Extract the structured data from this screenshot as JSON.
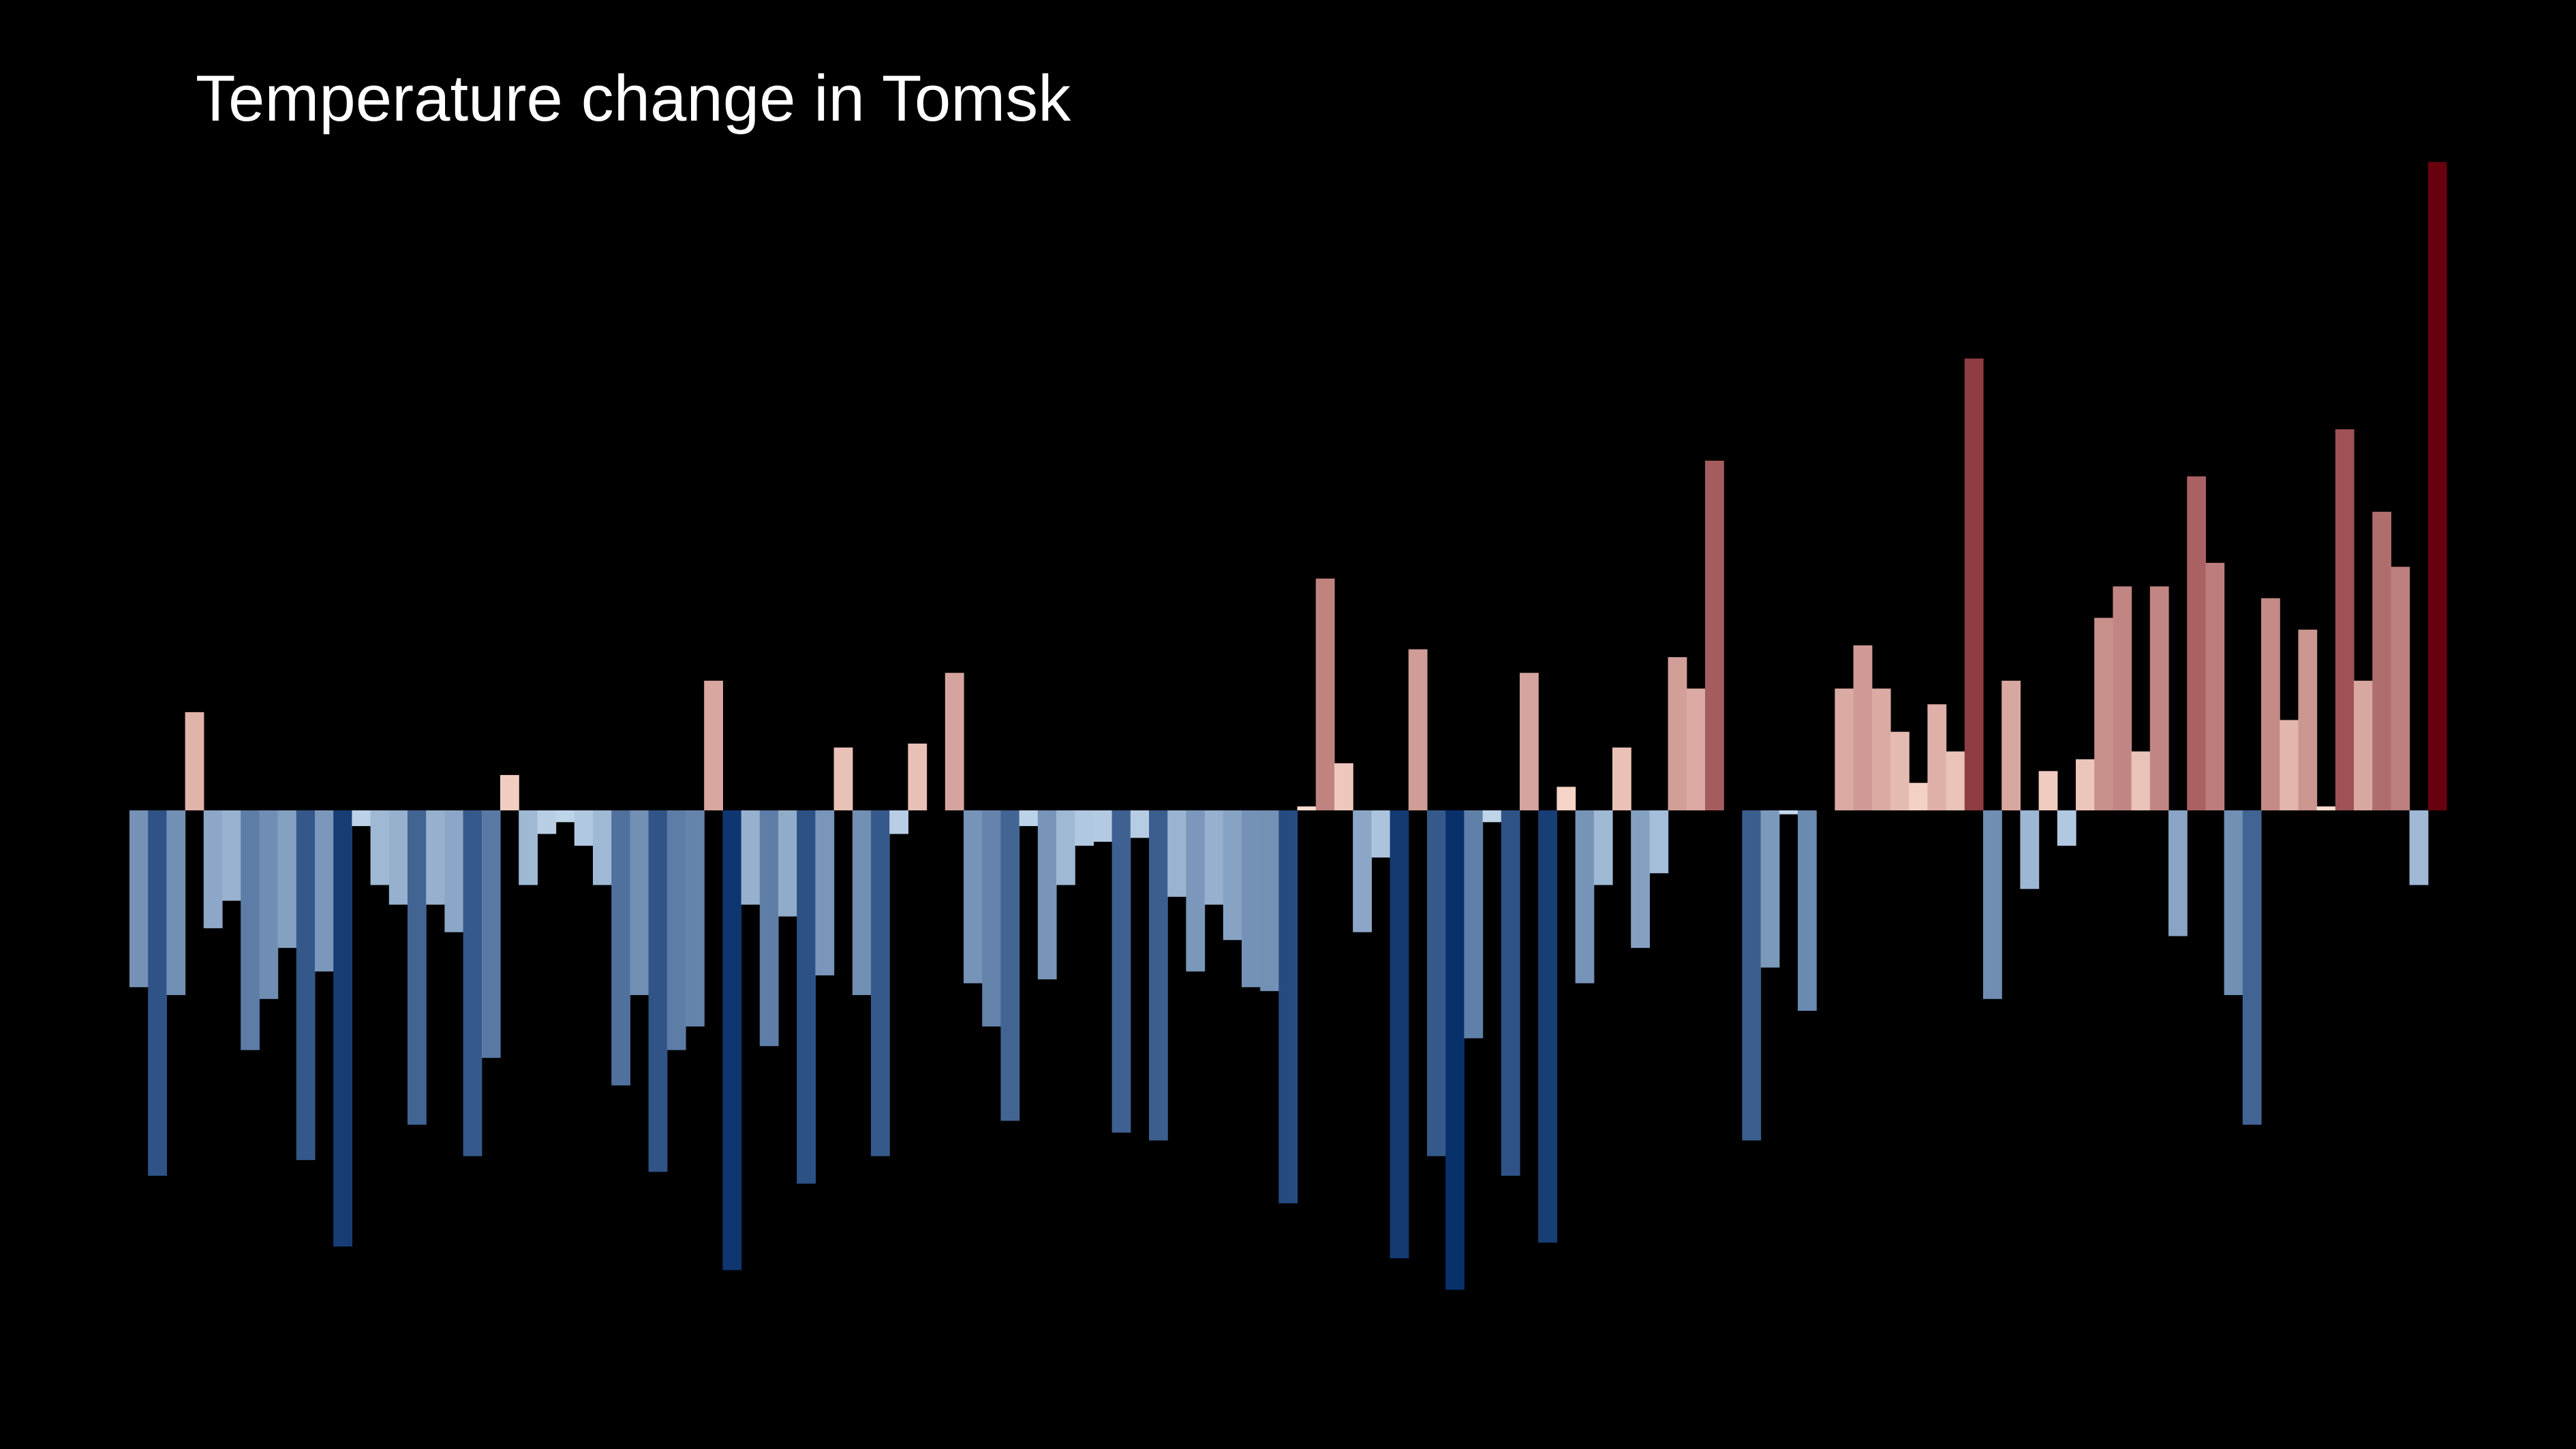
{
  "chart_data": {
    "type": "bar",
    "title": "Temperature change in Tomsk",
    "xlabel": "",
    "ylabel": "",
    "axes_visible": false,
    "grid": false,
    "legend": "none",
    "background": "#000000",
    "title_color": "#ffffff",
    "ylim": [
      -1.22,
      1.66
    ],
    "color_scale": {
      "negative_light": "#c6dbef",
      "negative_dark": "#08306b",
      "positive_light": "#fee0d2",
      "positive_dark": "#67000d"
    },
    "values": [
      -0.45,
      -0.93,
      -0.47,
      0.25,
      -0.3,
      -0.23,
      -0.61,
      -0.48,
      -0.35,
      -0.89,
      -0.41,
      -1.11,
      -0.04,
      -0.19,
      -0.24,
      -0.8,
      -0.24,
      -0.31,
      -0.88,
      -0.63,
      0.09,
      -0.19,
      -0.06,
      -0.03,
      -0.09,
      -0.19,
      -0.7,
      -0.47,
      -0.92,
      -0.61,
      -0.55,
      0.33,
      -1.17,
      -0.24,
      -0.6,
      -0.27,
      -0.95,
      -0.42,
      0.16,
      -0.47,
      -0.88,
      -0.06,
      0.17,
      0.0,
      0.35,
      -0.44,
      -0.55,
      -0.79,
      -0.04,
      -0.43,
      -0.19,
      -0.09,
      -0.08,
      -0.82,
      -0.07,
      -0.84,
      -0.22,
      -0.41,
      -0.24,
      -0.33,
      -0.45,
      -0.46,
      -1.0,
      0.01,
      0.59,
      0.12,
      -0.31,
      -0.12,
      -1.14,
      0.41,
      -0.88,
      -1.22,
      -0.58,
      -0.03,
      -0.93,
      0.35,
      -1.1,
      0.06,
      -0.44,
      -0.19,
      0.16,
      -0.35,
      -0.16,
      0.39,
      0.31,
      0.89,
      0.0,
      -0.84,
      -0.4,
      -0.01,
      -0.51,
      0.0,
      0.31,
      0.42,
      0.31,
      0.2,
      0.07,
      0.27,
      0.15,
      1.15,
      -0.48,
      0.33,
      -0.2,
      0.1,
      -0.09,
      0.13,
      0.49,
      0.57,
      0.15,
      0.57,
      -0.32,
      0.85,
      0.63,
      -0.47,
      -0.8,
      0.54,
      0.23,
      0.46,
      0.01,
      0.97,
      0.33,
      0.76,
      0.62,
      -0.19,
      1.65
    ]
  }
}
